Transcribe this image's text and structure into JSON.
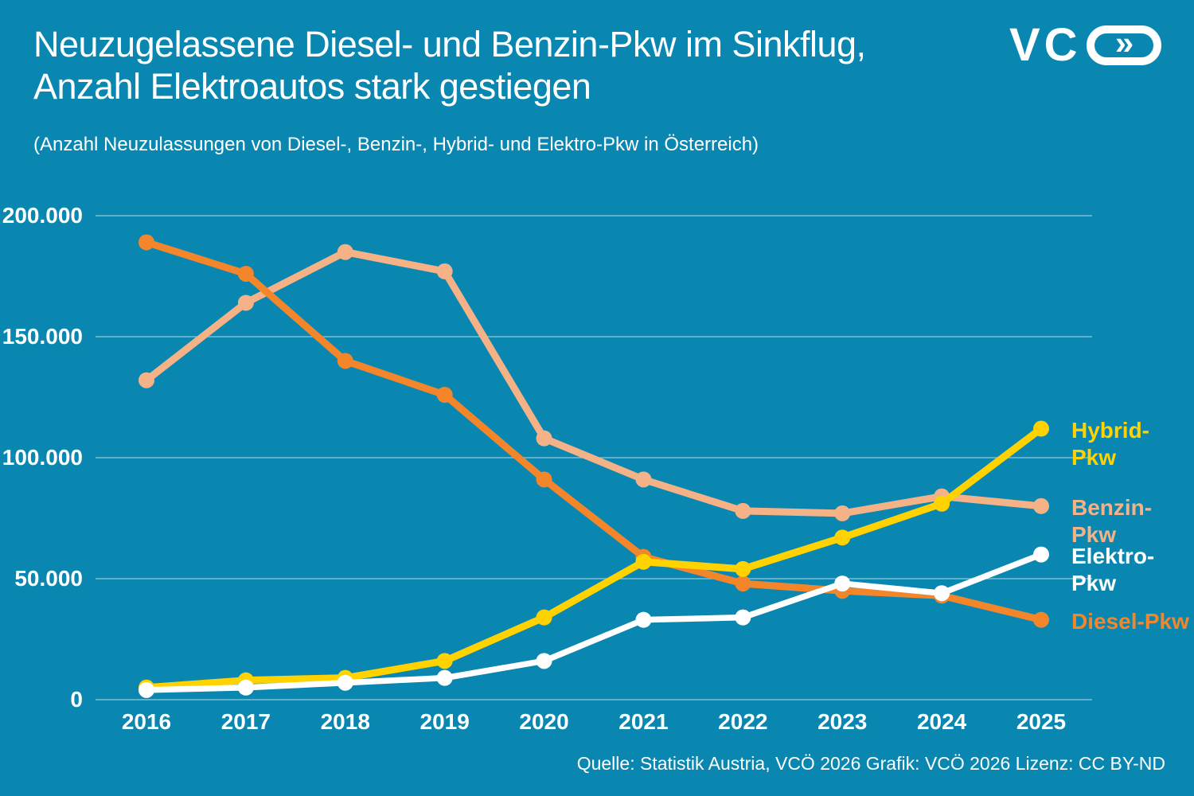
{
  "page": {
    "background_color": "#0A87B0",
    "text_color": "#FFFFFF",
    "gridline_color": "rgba(255,255,255,0.55)"
  },
  "header": {
    "title_line1": "Neuzugelassene Diesel- und Benzin-Pkw im Sinkflug,",
    "title_line2": "Anzahl Elektroautos stark gestiegen",
    "subtitle": "(Anzahl Neuzulassungen von Diesel-, Benzin-, Hybrid- und Elektro-Pkw in Österreich)",
    "logo": {
      "text": "VC",
      "chevrons": "»"
    }
  },
  "footer": {
    "source_text": "Quelle: Statistik Austria, VCÖ 2026 Grafik: VCÖ 2026 Lizenz: CC BY-ND"
  },
  "chart_data": {
    "type": "line",
    "title": "Neuzugelassene Diesel- und Benzin-Pkw im Sinkflug, Anzahl Elektroautos stark gestiegen",
    "subtitle": "(Anzahl Neuzulassungen von Diesel-, Benzin-, Hybrid- und Elektro-Pkw in Österreich)",
    "x": [
      2016,
      2017,
      2018,
      2019,
      2020,
      2021,
      2022,
      2023,
      2024,
      2025
    ],
    "x_labels": [
      "2016",
      "2017",
      "2018",
      "2019",
      "2020",
      "2021",
      "2022",
      "2023",
      "2024",
      "2025"
    ],
    "xlabel": "",
    "ylabel": "",
    "ylim": [
      0,
      200000
    ],
    "ytick_values": [
      0,
      50000,
      100000,
      150000,
      200000
    ],
    "ytick_labels": [
      "0",
      "50.000",
      "100.000",
      "150.000",
      "200.000"
    ],
    "grid": true,
    "legend_position": "right",
    "series": [
      {
        "name": "Benzin-Pkw",
        "color": "#F5B286",
        "values": [
          132000,
          164000,
          185000,
          177000,
          108000,
          91000,
          78000,
          77000,
          84000,
          80000
        ]
      },
      {
        "name": "Diesel-Pkw",
        "color": "#F3862B",
        "values": [
          189000,
          176000,
          140000,
          126000,
          91000,
          59000,
          48000,
          45000,
          43000,
          33000
        ]
      },
      {
        "name": "Hybrid-Pkw",
        "color": "#FFD200",
        "values": [
          5000,
          8000,
          9000,
          16000,
          34000,
          57000,
          54000,
          67000,
          81000,
          112000
        ]
      },
      {
        "name": "Elektro-Pkw",
        "color": "#FFFFFF",
        "values": [
          4000,
          5000,
          7000,
          9000,
          16000,
          33000,
          34000,
          48000,
          44000,
          60000
        ]
      }
    ]
  }
}
